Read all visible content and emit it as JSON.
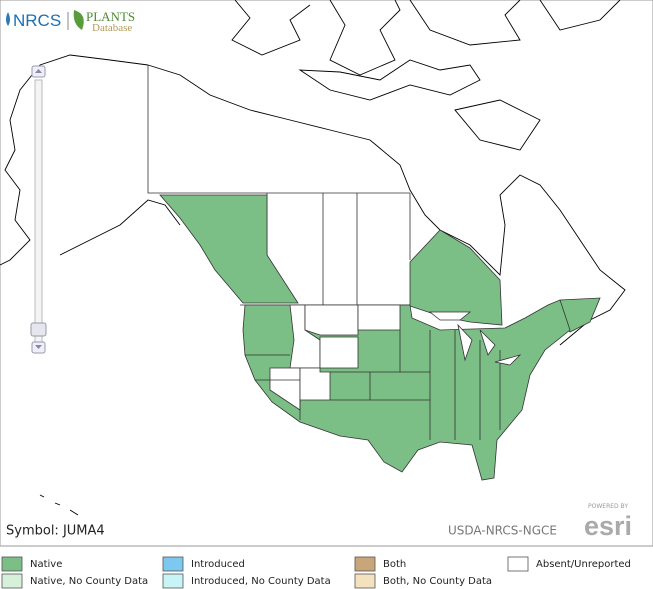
{
  "header": {
    "agency": "NRCS",
    "database_title": "PLANTS",
    "database_subtitle": "Database"
  },
  "map": {
    "symbol_label": "Symbol: JUMA4",
    "credit": "USDA-NRCS-NGCE",
    "powered_by": "POWERED BY",
    "esri": "esri"
  },
  "legend": [
    {
      "label": "Native",
      "color": "#7bbf86"
    },
    {
      "label": "Introduced",
      "color": "#7cc8ef"
    },
    {
      "label": "Both",
      "color": "#c9a57a"
    },
    {
      "label": "Absent/Unreported",
      "color": "#ffffff"
    },
    {
      "label": "Native, No County Data",
      "color": "#d6f0da"
    },
    {
      "label": "Introduced, No County Data",
      "color": "#c8f4f5"
    },
    {
      "label": "Both, No County Data",
      "color": "#f4e1bd"
    }
  ]
}
